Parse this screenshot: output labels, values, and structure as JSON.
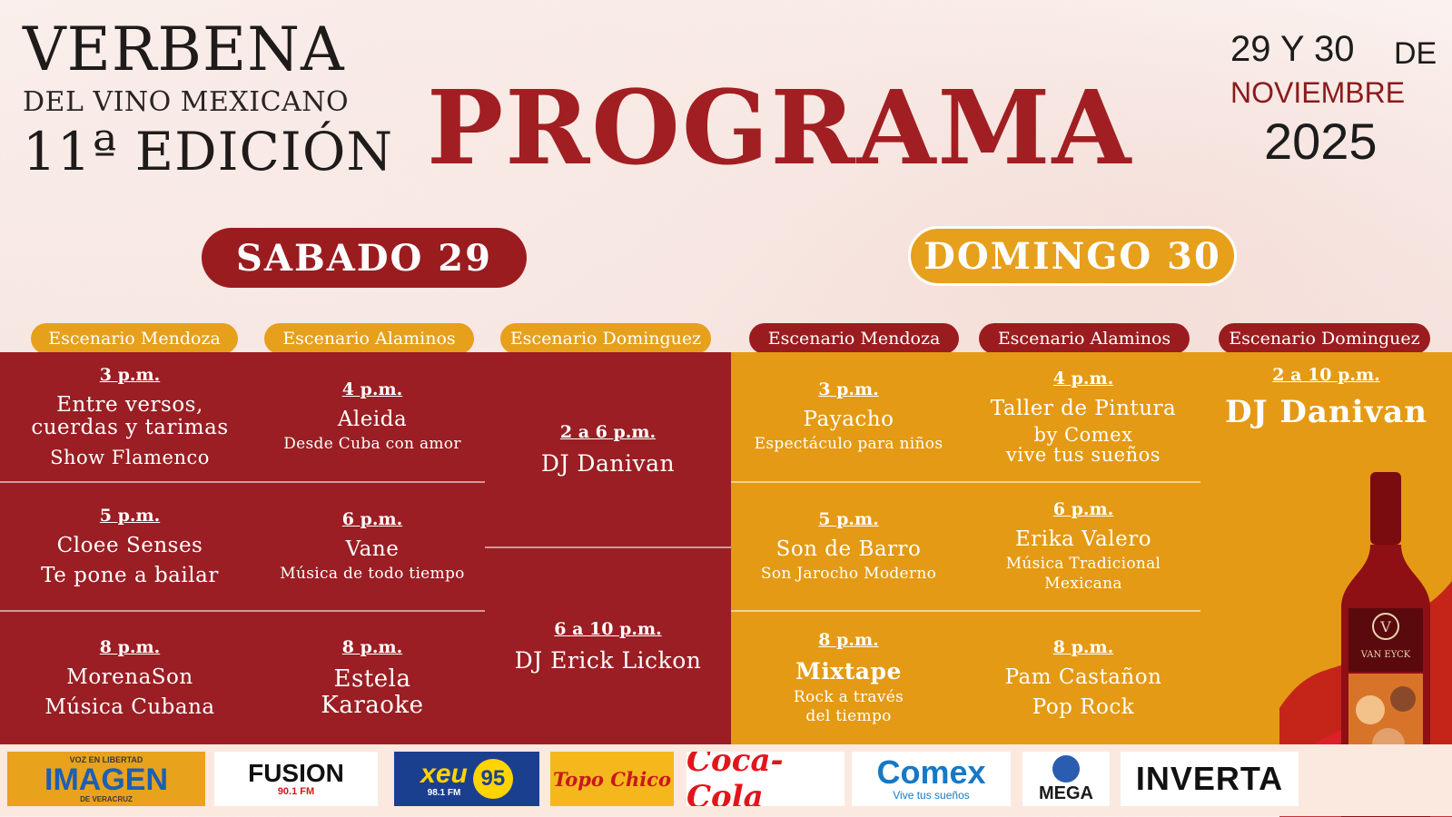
{
  "header": {
    "brand_line1": "VERBENA",
    "brand_line2": "DEL VINO MEXICANO",
    "brand_line3": "11ª EDICIÓN",
    "title": "PROGRAMA",
    "date_line1": "29 Y 30",
    "date_de": "DE",
    "date_line2": "NOVIEMBRE",
    "date_line3": "2025"
  },
  "colors": {
    "wine": "#9a1e23",
    "gold": "#e49a14"
  },
  "saturday": {
    "label": "SABADO 29",
    "stages": [
      "Escenario Mendoza",
      "Escenario Alaminos",
      "Escenario Dominguez"
    ],
    "mendoza": [
      {
        "time": "3 p.m.",
        "name": "Entre versos,\ncuerdas y tarimas",
        "sub": "Show Flamenco"
      },
      {
        "time": "5 p.m.",
        "name": "Cloee Senses",
        "sub": "Te pone a bailar"
      },
      {
        "time": "8 p.m.",
        "name": "MorenaSon",
        "sub": "Música Cubana"
      }
    ],
    "alaminos": [
      {
        "time": "4 p.m.",
        "name": "Aleida",
        "sub": "Desde Cuba con amor"
      },
      {
        "time": "6 p.m.",
        "name": "Vane",
        "sub": "Música de todo tiempo"
      },
      {
        "time": "8 p.m.",
        "name": "Estela",
        "sub": "Karaoke"
      }
    ],
    "dominguez": [
      {
        "time": "2 a 6 p.m.",
        "name": "DJ Danivan"
      },
      {
        "time": "6 a 10 p.m.",
        "name": "DJ Erick Lickon"
      }
    ]
  },
  "sunday": {
    "label": "DOMINGO 30",
    "stages": [
      "Escenario Mendoza",
      "Escenario Alaminos",
      "Escenario Dominguez"
    ],
    "mendoza": [
      {
        "time": "3 p.m.",
        "name": "Payacho",
        "sub": "Espectáculo para niños"
      },
      {
        "time": "5 p.m.",
        "name": "Son de Barro",
        "sub": "Son Jarocho Moderno"
      },
      {
        "time": "8 p.m.",
        "name": "Mixtape",
        "sub": "Rock a través\ndel tiempo"
      }
    ],
    "alaminos": [
      {
        "time": "4 p.m.",
        "name": "Taller de Pintura",
        "sub": "by Comex\nvive tus sueños"
      },
      {
        "time": "6 p.m.",
        "name": "Erika Valero",
        "sub": "Música Tradicional\nMexicana"
      },
      {
        "time": "8 p.m.",
        "name": "Pam Castañon",
        "sub": "Pop Rock"
      }
    ],
    "dominguez": [
      {
        "time": "2 a 10 p.m.",
        "name": "DJ Danivan"
      }
    ]
  },
  "bottle_label": "VAN EYCK",
  "sponsors": [
    {
      "name": "IMAGEN",
      "tagline": "VOZ EN LIBERTAD",
      "sub": "DE VERACRUZ"
    },
    {
      "name": "FUSION",
      "sub": "90.1 FM"
    },
    {
      "name": "xeu",
      "badge": "95",
      "sub": "98.1 FM"
    },
    {
      "name": "Topo Chico"
    },
    {
      "name": "Coca-Cola"
    },
    {
      "name": "Comex",
      "tagline": "Vive tus sueños"
    },
    {
      "name": "MEGA"
    },
    {
      "name": "INVERTA"
    }
  ]
}
